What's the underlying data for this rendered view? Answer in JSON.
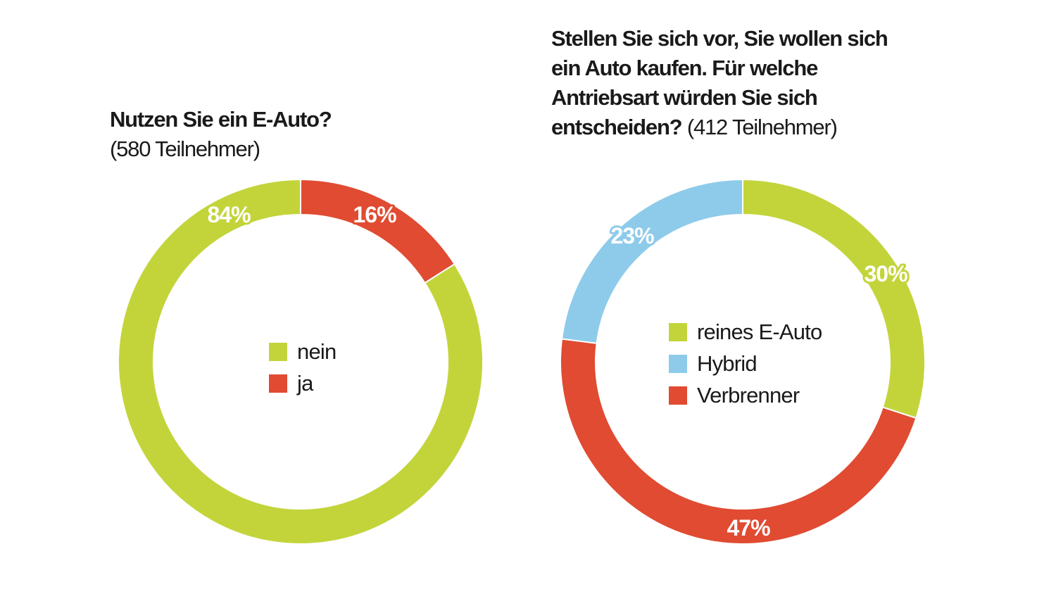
{
  "colors": {
    "green": "#c3d43b",
    "red": "#e04b32",
    "blue": "#8ecbea"
  },
  "chart_data": [
    {
      "type": "pie",
      "variant": "donut",
      "title": "Nutzen Sie ein E-Auto?",
      "subtitle": "(580 Teilnehmer)",
      "legend_placement": "center",
      "slices": [
        {
          "label": "ja",
          "value": 16,
          "display": "16%",
          "color": "#e04b32"
        },
        {
          "label": "nein",
          "value": 84,
          "display": "84%",
          "color": "#c3d43b"
        }
      ],
      "legend": [
        "nein",
        "ja"
      ]
    },
    {
      "type": "pie",
      "variant": "donut",
      "title": "Stellen Sie sich vor, Sie wollen sich ein Auto kaufen. Für welche Antriebsart würden Sie sich entscheiden?",
      "title_lines": [
        "Stellen Sie sich vor, Sie wollen sich",
        "ein Auto kaufen. Für welche",
        "Antriebsart würden Sie sich",
        "entscheiden?"
      ],
      "subtitle": "(412 Teilnehmer)",
      "legend_placement": "center",
      "slices": [
        {
          "label": "reines E-Auto",
          "value": 30,
          "display": "30%",
          "color": "#c3d43b"
        },
        {
          "label": "Verbrenner",
          "value": 47,
          "display": "47%",
          "color": "#e04b32"
        },
        {
          "label": "Hybrid",
          "value": 23,
          "display": "23%",
          "color": "#8ecbea"
        }
      ],
      "legend": [
        "reines E-Auto",
        "Hybrid",
        "Verbrenner"
      ]
    }
  ]
}
